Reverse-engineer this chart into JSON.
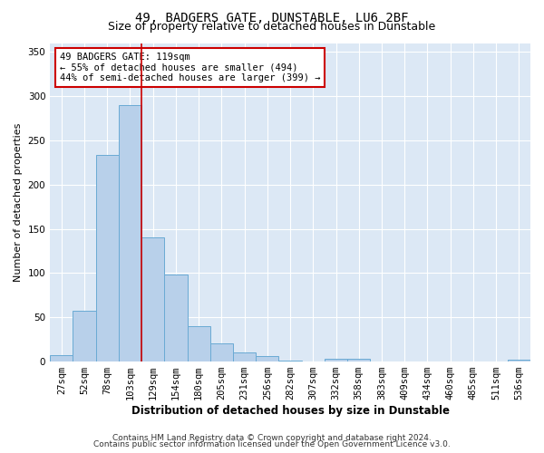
{
  "title": "49, BADGERS GATE, DUNSTABLE, LU6 2BF",
  "subtitle": "Size of property relative to detached houses in Dunstable",
  "xlabel": "Distribution of detached houses by size in Dunstable",
  "ylabel": "Number of detached properties",
  "categories": [
    "27sqm",
    "52sqm",
    "78sqm",
    "103sqm",
    "129sqm",
    "154sqm",
    "180sqm",
    "205sqm",
    "231sqm",
    "256sqm",
    "282sqm",
    "307sqm",
    "332sqm",
    "358sqm",
    "383sqm",
    "409sqm",
    "434sqm",
    "460sqm",
    "485sqm",
    "511sqm",
    "536sqm"
  ],
  "values": [
    7,
    57,
    234,
    290,
    140,
    98,
    40,
    21,
    10,
    6,
    1,
    0,
    3,
    3,
    0,
    0,
    0,
    0,
    0,
    0,
    2
  ],
  "bar_color": "#b8d0ea",
  "bar_edge_color": "#6aaad4",
  "vline_x_index": 3.5,
  "vline_color": "#cc0000",
  "annotation_text": "49 BADGERS GATE: 119sqm\n← 55% of detached houses are smaller (494)\n44% of semi-detached houses are larger (399) →",
  "annotation_box_color": "#ffffff",
  "annotation_box_edge": "#cc0000",
  "ylim": [
    0,
    360
  ],
  "yticks": [
    0,
    50,
    100,
    150,
    200,
    250,
    300,
    350
  ],
  "background_color": "#dce8f5",
  "footer1": "Contains HM Land Registry data © Crown copyright and database right 2024.",
  "footer2": "Contains public sector information licensed under the Open Government Licence v3.0.",
  "title_fontsize": 10,
  "subtitle_fontsize": 9,
  "xlabel_fontsize": 8.5,
  "ylabel_fontsize": 8,
  "tick_fontsize": 7.5,
  "footer_fontsize": 6.5
}
